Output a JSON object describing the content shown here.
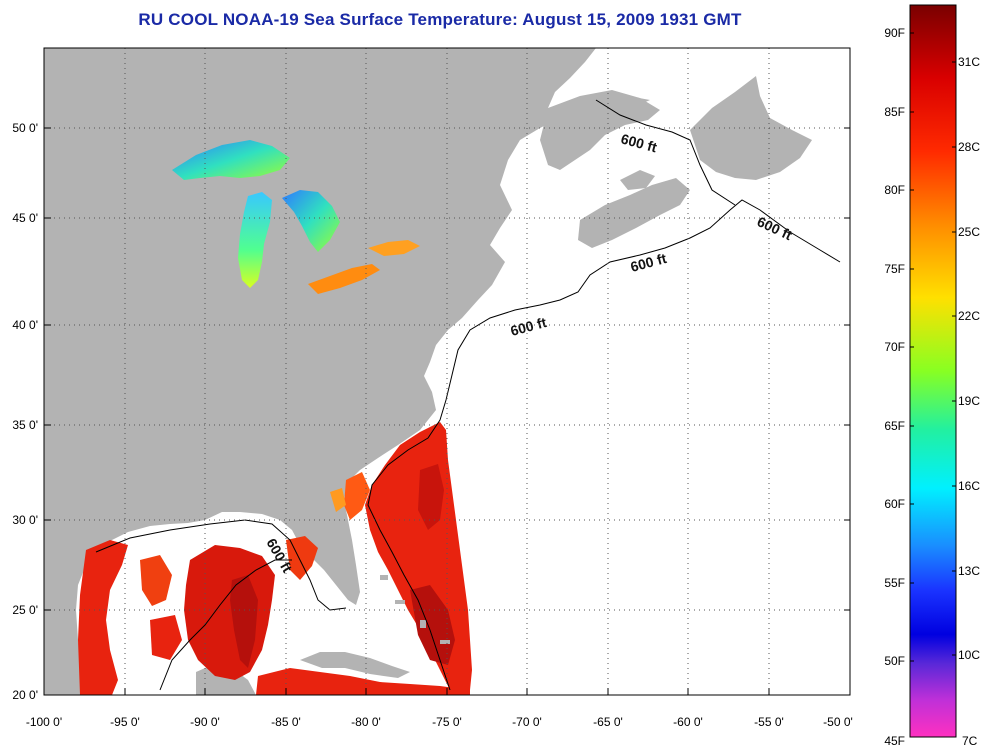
{
  "title": "RU COOL  NOAA-19  Sea Surface Temperature:  August 15, 2009 1931 GMT",
  "lon_ticks": [
    "-100 0'",
    "-95 0'",
    "-90 0'",
    "-85 0'",
    "-80 0'",
    "-75 0'",
    "-70 0'",
    "-65 0'",
    "-60 0'",
    "-55 0'",
    "-50 0'"
  ],
  "lat_ticks": [
    "50 0'",
    "45 0'",
    "40 0'",
    "35 0'",
    "30 0'",
    "25 0'",
    "20 0'"
  ],
  "contour_label": "600 ft",
  "colorbar": {
    "f_labels": [
      "90F",
      "85F",
      "80F",
      "75F",
      "70F",
      "65F",
      "60F",
      "55F",
      "50F",
      "45F"
    ],
    "c_labels": [
      "31C",
      "28C",
      "25C",
      "22C",
      "19C",
      "16C",
      "13C",
      "10C",
      "7C"
    ]
  },
  "colors": {
    "land": "#b3b3b3",
    "ocean_cloud": "#ffffff",
    "title": "#1a2aa6",
    "warm": "#e8230f",
    "hot": "#b5100c"
  }
}
